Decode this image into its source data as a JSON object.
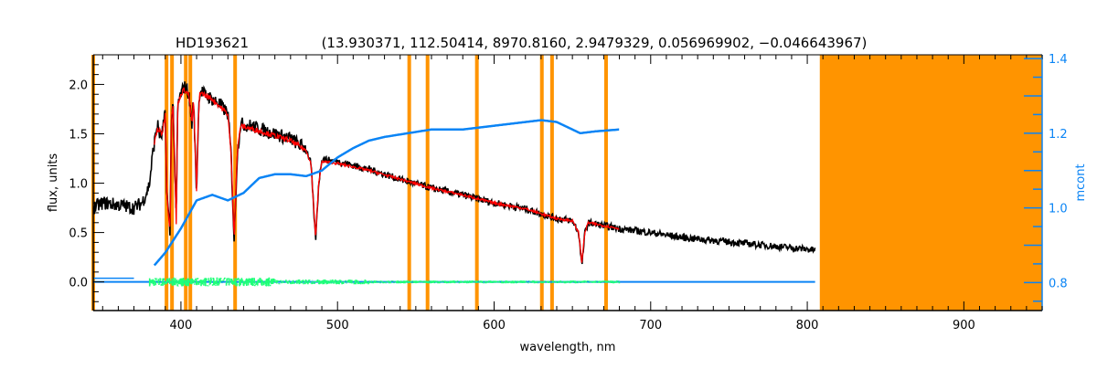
{
  "chart_data": {
    "type": "line",
    "title_object": "HD193621",
    "title_params": "(13.930371, 112.50414, 8970.8160, 2.9479329, 0.056969902, −0.046643967)",
    "xlabel": "wavelength, nm",
    "ylabel": "flux, units",
    "y2label": "mcont",
    "xlim": [
      344,
      950
    ],
    "ylim": [
      -0.29,
      2.3
    ],
    "y2lim": [
      0.725,
      1.41
    ],
    "xticks": [
      400,
      500,
      600,
      700,
      800,
      900
    ],
    "xtick_labels": [
      "400",
      "500",
      "600",
      "700",
      "800",
      "900"
    ],
    "yticks": [
      0.0,
      0.5,
      1.0,
      1.5,
      2.0
    ],
    "ytick_labels": [
      "0.0",
      "0.5",
      "1.0",
      "1.5",
      "2.0"
    ],
    "y2ticks": [
      0.8,
      1.0,
      1.2,
      1.4
    ],
    "y2tick_labels": [
      "0.8",
      "1.0",
      "1.2",
      "1.4"
    ],
    "colors": {
      "observed": "#000000",
      "model": "#ff0000",
      "mcont": "#0a84f5",
      "residual": "#1eff78",
      "mask": "#ff9400",
      "axis2": "#0a84f5"
    },
    "masked_band": [
      808,
      950
    ],
    "masked_lines_nm": [
      344,
      390.8,
      394.3,
      403.1,
      406.0,
      434.6,
      545.8,
      557.5,
      589.0,
      630.5,
      637.0,
      671.5
    ],
    "series": [
      {
        "name": "observed flux",
        "axis": "left",
        "x": [
          344,
          350,
          360,
          370,
          375,
          378,
          380,
          382,
          383,
          385,
          387,
          388,
          390,
          391,
          393,
          394,
          395,
          396,
          397,
          398,
          400,
          402,
          404,
          405,
          407,
          408,
          410,
          411,
          412,
          415,
          420,
          425,
          430,
          432,
          434,
          435,
          436,
          438,
          445,
          450,
          460,
          470,
          480,
          483,
          486,
          488,
          490,
          495,
          500,
          520,
          540,
          560,
          580,
          600,
          620,
          640,
          650,
          654,
          656,
          658,
          660,
          680,
          700,
          720,
          740,
          760,
          780,
          800,
          805
        ],
        "y": [
          0.75,
          0.8,
          0.78,
          0.75,
          0.8,
          0.9,
          1.0,
          1.3,
          1.4,
          1.6,
          1.45,
          1.5,
          1.7,
          0.9,
          0.5,
          1.7,
          1.8,
          1.2,
          0.6,
          1.8,
          1.9,
          1.98,
          1.95,
          1.9,
          1.6,
          1.85,
          0.9,
          1.6,
          1.95,
          1.9,
          1.85,
          1.8,
          1.7,
          1.3,
          0.4,
          0.9,
          1.3,
          1.6,
          1.58,
          1.55,
          1.5,
          1.45,
          1.35,
          1.2,
          0.42,
          1.0,
          1.25,
          1.23,
          1.22,
          1.14,
          1.04,
          0.95,
          0.88,
          0.8,
          0.74,
          0.64,
          0.62,
          0.5,
          0.16,
          0.5,
          0.6,
          0.54,
          0.5,
          0.45,
          0.42,
          0.39,
          0.36,
          0.33,
          0.32
        ]
      },
      {
        "name": "model fit",
        "axis": "left",
        "x": [
          383,
          385,
          388,
          390,
          391,
          393,
          394,
          395,
          396,
          397,
          398,
          400,
          402,
          405,
          407,
          408,
          410,
          411,
          412,
          420,
          430,
          432,
          434,
          435,
          436,
          438,
          450,
          470,
          480,
          483,
          486,
          488,
          490,
          500,
          520,
          540,
          560,
          580,
          600,
          620,
          640,
          650,
          654,
          656,
          658,
          660,
          680
        ],
        "y": [
          1.4,
          1.55,
          1.5,
          1.7,
          0.9,
          0.5,
          1.7,
          1.8,
          1.2,
          0.6,
          1.8,
          1.9,
          1.95,
          1.9,
          1.6,
          1.85,
          0.9,
          1.6,
          1.92,
          1.85,
          1.7,
          1.3,
          0.45,
          0.9,
          1.3,
          1.58,
          1.53,
          1.43,
          1.33,
          1.2,
          0.45,
          1.0,
          1.22,
          1.2,
          1.13,
          1.04,
          0.95,
          0.88,
          0.8,
          0.74,
          0.64,
          0.62,
          0.5,
          0.2,
          0.5,
          0.6,
          0.54
        ]
      },
      {
        "name": "mcont",
        "axis": "right",
        "x": [
          383,
          390,
          400,
          410,
          420,
          430,
          440,
          450,
          460,
          470,
          480,
          490,
          500,
          510,
          520,
          530,
          545,
          560,
          580,
          600,
          620,
          630,
          640,
          655,
          665,
          680
        ],
        "y": [
          0.846,
          0.88,
          0.945,
          1.02,
          1.035,
          1.02,
          1.04,
          1.08,
          1.09,
          1.09,
          1.085,
          1.1,
          1.135,
          1.16,
          1.18,
          1.19,
          1.2,
          1.21,
          1.21,
          1.22,
          1.23,
          1.235,
          1.23,
          1.2,
          1.205,
          1.21
        ]
      },
      {
        "name": "residual",
        "axis": "left",
        "x": [
          380,
          680
        ],
        "y": [
          0.0,
          0.0
        ]
      },
      {
        "name": "zero baseline",
        "axis": "left",
        "x": [
          344,
          805
        ],
        "y": [
          0.0,
          0.0
        ]
      }
    ]
  }
}
